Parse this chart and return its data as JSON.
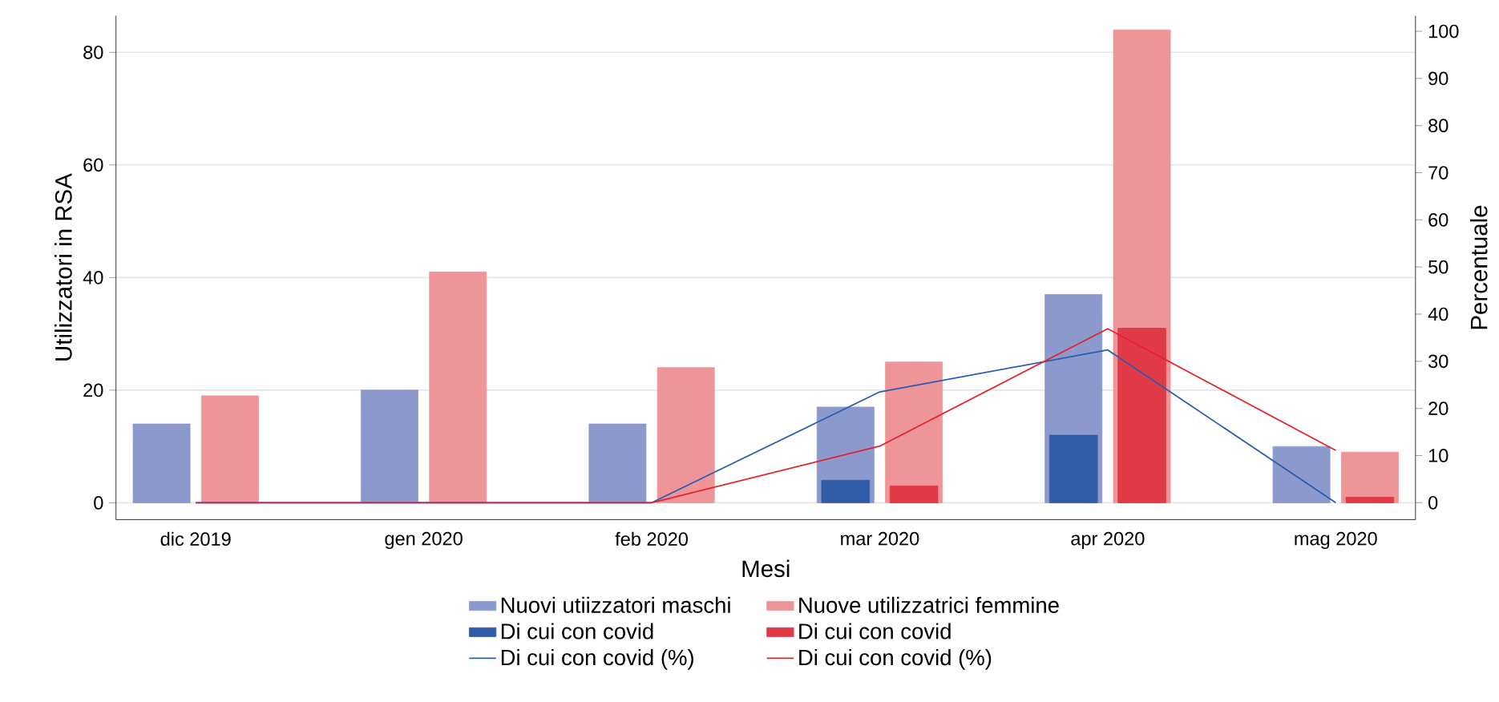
{
  "chart_data": {
    "type": "bar",
    "categories": [
      "dic 2019",
      "gen 2020",
      "feb 2020",
      "mar 2020",
      "apr 2020",
      "mag 2020"
    ],
    "xlabel": "Mesi",
    "ylabel": "Utilizzatori in RSA",
    "y2label": "Percentuale",
    "ylim": [
      -3,
      86.5
    ],
    "yticks": [
      0,
      20,
      40,
      60,
      80
    ],
    "y2lim": [
      -3.6,
      103.3
    ],
    "y2ticks": [
      0,
      10,
      20,
      30,
      40,
      50,
      60,
      70,
      80,
      90,
      100
    ],
    "grid": "y",
    "legend": "bottom",
    "series": [
      {
        "name": "Nuovi utiizzatori maschi",
        "color": "#8c99cc",
        "values": [
          14,
          20,
          14,
          17,
          37,
          10
        ]
      },
      {
        "name": "Nuove utilizzatrici femmine",
        "color": "#ee959a",
        "values": [
          19,
          41,
          24,
          25,
          84,
          9
        ]
      },
      {
        "name": "Di cui con covid",
        "color": "#315ca8",
        "values": [
          0,
          0,
          0,
          4,
          12,
          0
        ]
      },
      {
        "name": "Di cui con covid",
        "color": "#e03a46",
        "values": [
          0,
          0,
          0,
          3,
          31,
          1
        ]
      },
      {
        "name": "Di cui con covid (%)",
        "type": "line",
        "axis": "y2",
        "color": "#2a5db0",
        "values": [
          0,
          0,
          0,
          23.5,
          32.4,
          0
        ]
      },
      {
        "name": "Di cui con covid (%)",
        "type": "line",
        "axis": "y2",
        "color": "#e4222c",
        "values": [
          0,
          0,
          0,
          12,
          36.9,
          11.1
        ]
      }
    ]
  }
}
